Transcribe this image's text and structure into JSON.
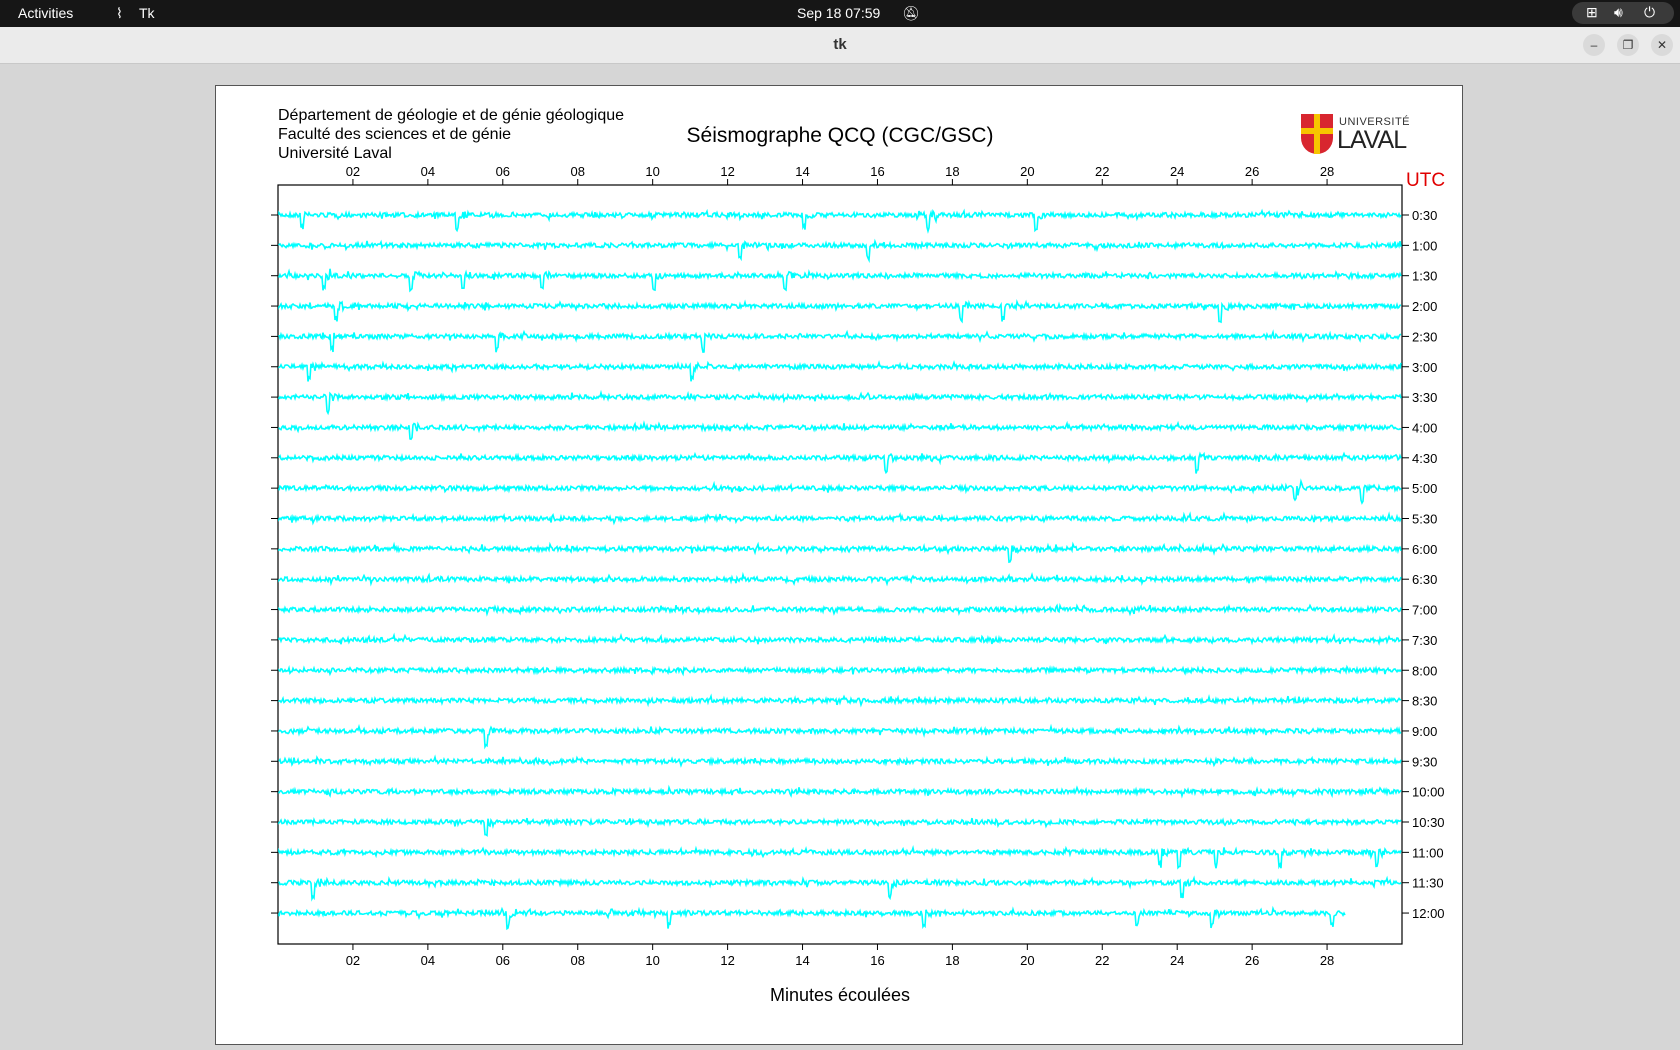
{
  "topbar": {
    "activities": "Activities",
    "app_name": "Tk",
    "datetime": "Sep 18  07:59",
    "icons": [
      "network-icon",
      "volume-icon",
      "power-icon",
      "bell-muted-icon"
    ]
  },
  "window": {
    "title": "tk",
    "buttons": [
      "minimize",
      "restore",
      "close"
    ]
  },
  "header": {
    "line1": "Département de géologie et de génie géologique",
    "line2": "Faculté des sciences et de génie",
    "line3": "Université Laval",
    "title": "Séismographe QCQ (CGC/GSC)",
    "logo_text": "UNIVERSITÉ LAVAL"
  },
  "chart_data": {
    "type": "line",
    "title": "Séismographe QCQ (CGC/GSC)",
    "xlabel": "Minutes écoulées",
    "ylabel": "UTC",
    "xlim": [
      0,
      30
    ],
    "x_ticks": [
      "02",
      "04",
      "06",
      "08",
      "10",
      "12",
      "14",
      "16",
      "18",
      "20",
      "22",
      "24",
      "26",
      "28"
    ],
    "rows": [
      "0:30",
      "1:00",
      "1:30",
      "2:00",
      "2:30",
      "3:00",
      "3:30",
      "4:00",
      "4:30",
      "5:00",
      "5:30",
      "6:00",
      "6:30",
      "7:00",
      "7:30",
      "8:00",
      "8:30",
      "9:00",
      "9:30",
      "10:00",
      "10:30",
      "11:00",
      "11:30",
      "12:00"
    ],
    "last_row_end_minute": 28.5,
    "trace_color": "#00ffff",
    "utc_color": "#e00000",
    "events": [
      {
        "row": "0:30",
        "minutes": [
          0.6,
          4.75,
          14.0,
          17.3,
          20.2
        ]
      },
      {
        "row": "1:00",
        "minutes": [
          12.3,
          15.7
        ]
      },
      {
        "row": "1:30",
        "minutes": [
          1.2,
          3.5,
          4.9,
          7.0,
          10.0,
          13.5
        ]
      },
      {
        "row": "2:00",
        "minutes": [
          1.5,
          18.2,
          19.3,
          25.1
        ]
      },
      {
        "row": "2:30",
        "minutes": [
          1.4,
          5.8,
          11.3
        ]
      },
      {
        "row": "3:00",
        "minutes": [
          0.8,
          11.0
        ]
      },
      {
        "row": "3:30",
        "minutes": [
          1.3
        ]
      },
      {
        "row": "4:00",
        "minutes": [
          3.5
        ]
      },
      {
        "row": "4:30",
        "minutes": [
          16.2,
          24.5
        ]
      },
      {
        "row": "5:00",
        "minutes": [
          27.1,
          28.9
        ]
      },
      {
        "row": "6:00",
        "minutes": [
          19.5
        ]
      },
      {
        "row": "9:00",
        "minutes": [
          5.5
        ]
      },
      {
        "row": "10:30",
        "minutes": [
          5.5
        ]
      },
      {
        "row": "11:00",
        "minutes": [
          23.5,
          24.0,
          25.0,
          26.7,
          29.3
        ]
      },
      {
        "row": "11:30",
        "minutes": [
          0.9,
          16.3,
          24.1
        ]
      },
      {
        "row": "12:00",
        "minutes": [
          6.1,
          10.4,
          17.2,
          22.9,
          24.9,
          28.1
        ]
      }
    ]
  }
}
